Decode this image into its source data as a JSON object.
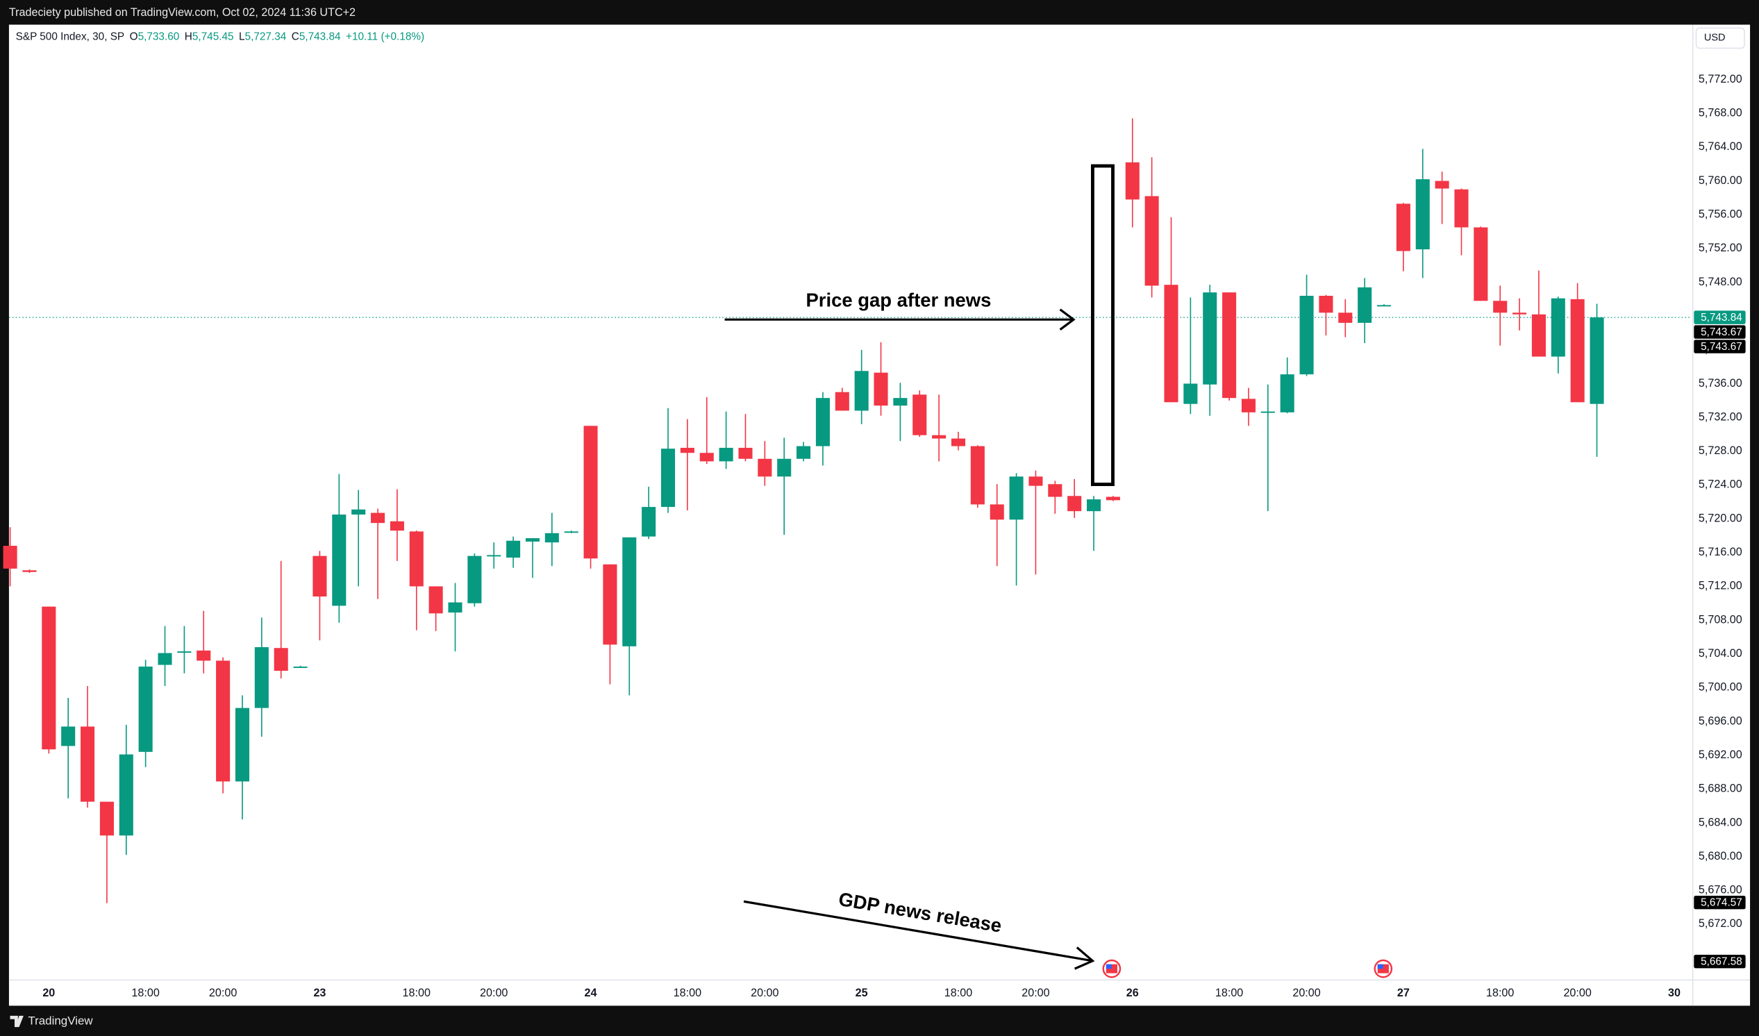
{
  "header": {
    "text": "Tradeciety published on TradingView.com, Oct 02, 2024 11:36 UTC+2"
  },
  "footer": {
    "brand": "TradingView"
  },
  "chart_data": {
    "type": "candlestick",
    "legend": {
      "symbol": "S&P 500 Index, 30, SP",
      "fields": [
        {
          "name": "O",
          "value": 5733.6,
          "label": "5,733.60"
        },
        {
          "name": "H",
          "value": 5745.45,
          "label": "5,745.45"
        },
        {
          "name": "L",
          "value": 5727.34,
          "label": "5,727.34"
        },
        {
          "name": "C",
          "value": 5743.84,
          "label": "5,743.84"
        }
      ],
      "change": "+10.11 (+0.18%)"
    },
    "currency": "USD",
    "up_color": "#089981",
    "down_color": "#f23645",
    "open": [
      5716.8,
      5713.9,
      5709.6,
      5693.1,
      5695.4,
      5686.5,
      5682.5,
      5692.4,
      5702.7,
      5704.2,
      5704.4,
      5703.2,
      5688.9,
      5697.6,
      5704.7,
      5702.4,
      5715.6,
      5709.7,
      5720.5,
      5720.7,
      5719.7,
      5718.5,
      5712.0,
      5708.9,
      5710.0,
      5715.6,
      5715.4,
      5717.3,
      5717.2,
      5718.4,
      5731.0,
      5714.6,
      5704.9,
      5717.9,
      5721.4,
      5728.4,
      5727.8,
      5726.8,
      5728.4,
      5727.1,
      5725.0,
      5727.1,
      5728.6,
      5735.0,
      5732.8,
      5737.3,
      5733.4,
      5734.7,
      5729.9,
      5729.5,
      5728.6,
      5721.7,
      5719.9,
      5725.0,
      5724.1,
      5722.7,
      5720.9,
      5722.6,
      5762.2,
      5758.2,
      5747.7,
      5733.6,
      5735.9,
      5746.8,
      5734.2,
      5732.6,
      5732.6,
      5737.1,
      5746.4,
      5744.4,
      5743.2,
      5745.2,
      5757.3,
      5751.9,
      5760.0,
      5759.0,
      5754.5,
      5745.8,
      5744.4,
      5744.2,
      5739.2,
      5746.0,
      5733.6
    ],
    "high": [
      5719.0,
      5714.0,
      5709.6,
      5698.8,
      5700.2,
      5686.5,
      5695.6,
      5703.3,
      5707.3,
      5707.3,
      5709.1,
      5703.6,
      5699.1,
      5708.3,
      5715.0,
      5702.6,
      5716.2,
      5725.3,
      5723.4,
      5721.2,
      5723.5,
      5718.6,
      5712.0,
      5712.4,
      5715.9,
      5717.2,
      5717.9,
      5717.7,
      5720.7,
      5718.6,
      5731.0,
      5714.6,
      5717.8,
      5723.8,
      5733.1,
      5731.8,
      5734.4,
      5732.7,
      5732.4,
      5729.2,
      5729.6,
      5729.1,
      5735.0,
      5735.5,
      5740.0,
      5740.9,
      5736.1,
      5735.2,
      5734.7,
      5730.3,
      5728.7,
      5724.1,
      5725.4,
      5725.7,
      5724.5,
      5724.7,
      5722.7,
      5722.7,
      5767.4,
      5762.8,
      5755.7,
      5746.2,
      5747.7,
      5746.8,
      5735.5,
      5735.9,
      5739.1,
      5748.9,
      5746.5,
      5746.0,
      5748.5,
      5745.4,
      5757.4,
      5763.8,
      5761.1,
      5759.1,
      5754.6,
      5747.6,
      5746.1,
      5749.4,
      5746.3,
      5747.9,
      5745.45
    ],
    "low": [
      5712.0,
      5713.6,
      5692.2,
      5686.9,
      5685.8,
      5674.5,
      5680.2,
      5690.6,
      5700.2,
      5701.7,
      5701.7,
      5687.5,
      5684.4,
      5694.2,
      5701.1,
      5702.4,
      5705.6,
      5707.7,
      5712.0,
      5710.5,
      5715.0,
      5706.8,
      5706.7,
      5704.3,
      5709.6,
      5714.1,
      5714.2,
      5713.0,
      5714.4,
      5718.3,
      5714.1,
      5700.4,
      5699.1,
      5717.6,
      5720.7,
      5721.0,
      5726.5,
      5725.9,
      5726.8,
      5723.9,
      5718.1,
      5726.8,
      5726.3,
      5732.8,
      5731.2,
      5732.2,
      5729.2,
      5729.7,
      5726.8,
      5728.1,
      5721.3,
      5714.4,
      5712.1,
      5713.4,
      5720.6,
      5720.1,
      5716.2,
      5722.1,
      5754.5,
      5746.2,
      5733.8,
      5732.4,
      5732.2,
      5734.0,
      5731.0,
      5720.9,
      5732.5,
      5736.9,
      5741.7,
      5741.5,
      5740.8,
      5745.2,
      5749.3,
      5748.5,
      5754.9,
      5751.2,
      5745.8,
      5740.5,
      5742.3,
      5739.2,
      5737.2,
      5733.8,
      5727.34
    ],
    "close": [
      5714.1,
      5713.7,
      5692.7,
      5695.4,
      5686.5,
      5682.5,
      5692.1,
      5702.5,
      5704.1,
      5704.3,
      5703.2,
      5688.9,
      5697.6,
      5704.8,
      5702.0,
      5702.5,
      5710.8,
      5720.5,
      5721.1,
      5719.5,
      5718.6,
      5712.0,
      5708.8,
      5710.1,
      5715.6,
      5715.7,
      5717.4,
      5717.7,
      5718.3,
      5718.5,
      5715.3,
      5705.1,
      5717.8,
      5721.4,
      5728.3,
      5727.8,
      5726.8,
      5728.4,
      5727.1,
      5725.0,
      5727.1,
      5728.6,
      5734.3,
      5732.8,
      5737.5,
      5733.4,
      5734.3,
      5729.9,
      5729.5,
      5728.6,
      5721.7,
      5719.9,
      5725.0,
      5723.9,
      5722.6,
      5720.9,
      5722.3,
      5722.2,
      5757.8,
      5747.6,
      5733.8,
      5736.0,
      5746.8,
      5734.3,
      5732.6,
      5732.7,
      5737.1,
      5746.4,
      5744.4,
      5743.2,
      5747.4,
      5745.3,
      5751.7,
      5760.2,
      5759.1,
      5754.5,
      5745.8,
      5744.4,
      5744.2,
      5739.2,
      5746.1,
      5733.8,
      5743.84
    ],
    "xlim": [
      -0.06,
      86.9
    ],
    "xticks": [
      {
        "value": 2,
        "label": "20"
      },
      {
        "value": 7,
        "label": "18:00"
      },
      {
        "value": 11,
        "label": "20:00"
      },
      {
        "value": 16,
        "label": "23"
      },
      {
        "value": 21,
        "label": "18:00"
      },
      {
        "value": 25,
        "label": "20:00"
      },
      {
        "value": 30,
        "label": "24"
      },
      {
        "value": 35,
        "label": "18:00"
      },
      {
        "value": 39,
        "label": "20:00"
      },
      {
        "value": 44,
        "label": "25"
      },
      {
        "value": 49,
        "label": "18:00"
      },
      {
        "value": 53,
        "label": "20:00"
      },
      {
        "value": 58,
        "label": "26"
      },
      {
        "value": 63,
        "label": "18:00"
      },
      {
        "value": 67,
        "label": "20:00"
      },
      {
        "value": 72,
        "label": "27"
      },
      {
        "value": 77,
        "label": "18:00"
      },
      {
        "value": 81,
        "label": "20:00"
      },
      {
        "value": 86,
        "label": "30"
      }
    ],
    "ylim": [
      5665.4,
      5778.5
    ],
    "yticks": [
      {
        "value": 5672,
        "label": "5,672.00"
      },
      {
        "value": 5676,
        "label": "5,676.00"
      },
      {
        "value": 5680,
        "label": "5,680.00"
      },
      {
        "value": 5684,
        "label": "5,684.00"
      },
      {
        "value": 5688,
        "label": "5,688.00"
      },
      {
        "value": 5692,
        "label": "5,692.00"
      },
      {
        "value": 5696,
        "label": "5,696.00"
      },
      {
        "value": 5700,
        "label": "5,700.00"
      },
      {
        "value": 5704,
        "label": "5,704.00"
      },
      {
        "value": 5708,
        "label": "5,708.00"
      },
      {
        "value": 5712,
        "label": "5,712.00"
      },
      {
        "value": 5716,
        "label": "5,716.00"
      },
      {
        "value": 5720,
        "label": "5,720.00"
      },
      {
        "value": 5724,
        "label": "5,724.00"
      },
      {
        "value": 5728,
        "label": "5,728.00"
      },
      {
        "value": 5732,
        "label": "5,732.00"
      },
      {
        "value": 5736,
        "label": "5,736.00"
      },
      {
        "value": 5740,
        "label": "5,740.00"
      },
      {
        "value": 5744,
        "label": "5,744.00"
      },
      {
        "value": 5748,
        "label": "5,748.00"
      },
      {
        "value": 5752,
        "label": "5,752.00"
      },
      {
        "value": 5756,
        "label": "5,756.00"
      },
      {
        "value": 5760,
        "label": "5,760.00"
      },
      {
        "value": 5764,
        "label": "5,764.00"
      },
      {
        "value": 5768,
        "label": "5,768.00"
      },
      {
        "value": 5772,
        "label": "5,772.00"
      }
    ],
    "grid": false,
    "price_labels": [
      {
        "value": 5743.84,
        "label": "5,743.84",
        "color": "#089981"
      },
      {
        "value": 5743.67,
        "label": "5,743.67",
        "color": "#000000"
      },
      {
        "value": 5743.67,
        "label": "5,743.67",
        "color": "#000000"
      },
      {
        "value": 5674.57,
        "label": "5,674.57",
        "color": "#000000"
      },
      {
        "value": 5667.58,
        "label": "5,667.58",
        "color": "#000000"
      }
    ],
    "annotations": [
      "Price gap after news",
      "GDP news release"
    ]
  }
}
